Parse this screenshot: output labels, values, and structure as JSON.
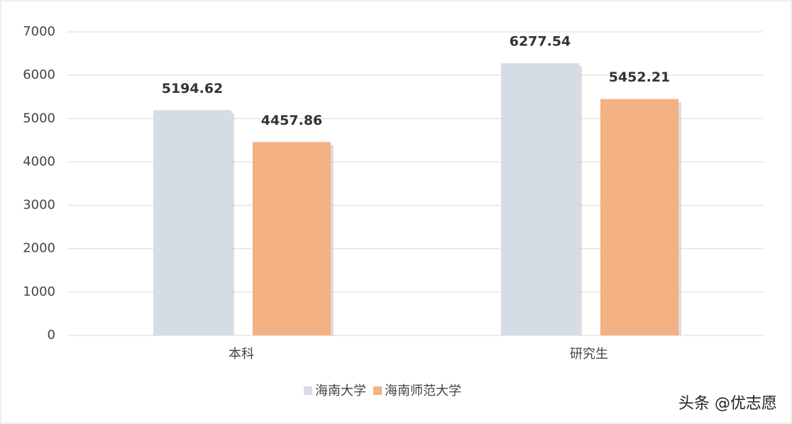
{
  "chart_data": {
    "type": "bar",
    "categories": [
      "本科",
      "研究生"
    ],
    "series": [
      {
        "name": "海南大学",
        "color": "#d6dce6",
        "values": [
          5194.62,
          6277.54
        ]
      },
      {
        "name": "海南师范大学",
        "color": "#f4b183",
        "values": [
          4457.86,
          5452.21
        ]
      }
    ],
    "ylim": [
      0,
      7000
    ],
    "yticks": [
      0,
      1000,
      2000,
      3000,
      4000,
      5000,
      6000,
      7000
    ],
    "grid": true,
    "legend": "bottom",
    "footer": "头条 @优志愿"
  }
}
